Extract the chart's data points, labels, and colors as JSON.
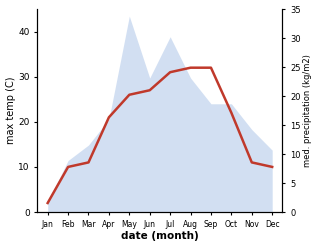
{
  "months": [
    "Jan",
    "Feb",
    "Mar",
    "Apr",
    "May",
    "Jun",
    "Jul",
    "Aug",
    "Sep",
    "Oct",
    "Nov",
    "Dec"
  ],
  "x": [
    0,
    1,
    2,
    3,
    4,
    5,
    6,
    7,
    8,
    9,
    10,
    11
  ],
  "max_temp": [
    2,
    10,
    11,
    21,
    26,
    27,
    31,
    32,
    32,
    22,
    11,
    10
  ],
  "precipitation": [
    2,
    10,
    13,
    18,
    38,
    26,
    34,
    26,
    21,
    21,
    16,
    12
  ],
  "temp_color": "#c0392b",
  "precip_color": "#aec6e8",
  "precip_fill_alpha": 0.55,
  "temp_linewidth": 1.8,
  "xlabel": "date (month)",
  "ylabel_left": "max temp (C)",
  "ylabel_right": "med. precipitation (kg/m2)",
  "ylim_left": [
    0,
    45
  ],
  "ylim_right": [
    0,
    35
  ],
  "yticks_left": [
    0,
    10,
    20,
    30,
    40
  ],
  "yticks_right": [
    0,
    5,
    10,
    15,
    20,
    25,
    30,
    35
  ],
  "bg_color": "#ffffff"
}
